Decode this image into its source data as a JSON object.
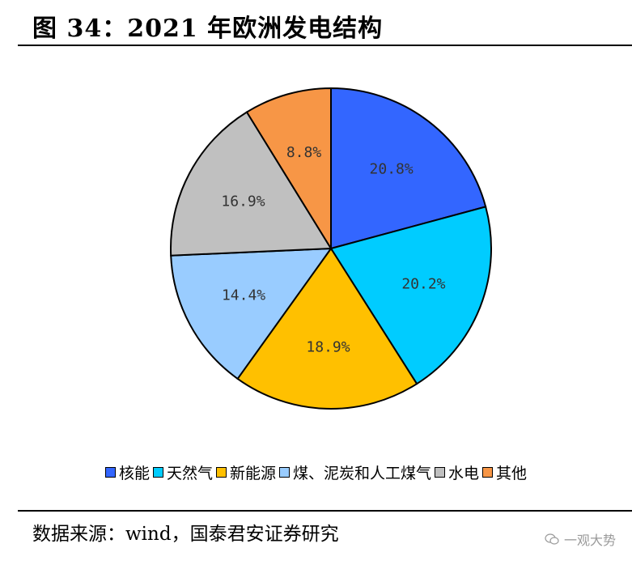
{
  "title": "图 34：2021 年欧洲发电结构",
  "source": "数据来源：wind，国泰君安证券研究",
  "watermark": "一观大势",
  "chart_data": {
    "type": "pie",
    "title": "图 34：2021 年欧洲发电结构",
    "legend_position": "bottom",
    "slices": [
      {
        "name": "核能",
        "value": 20.8,
        "label": "20.8%",
        "color": "#3366ff"
      },
      {
        "name": "天然气",
        "value": 20.2,
        "label": "20.2%",
        "color": "#00ccff"
      },
      {
        "name": "新能源",
        "value": 18.9,
        "label": "18.9%",
        "color": "#ffc000"
      },
      {
        "name": "煤、泥炭和人工煤气",
        "value": 14.4,
        "label": "14.4%",
        "color": "#99ccff"
      },
      {
        "name": "水电",
        "value": 16.9,
        "label": "16.9%",
        "color": "#c0c0c0"
      },
      {
        "name": "其他",
        "value": 8.8,
        "label": "8.8%",
        "color": "#f79646"
      }
    ]
  }
}
